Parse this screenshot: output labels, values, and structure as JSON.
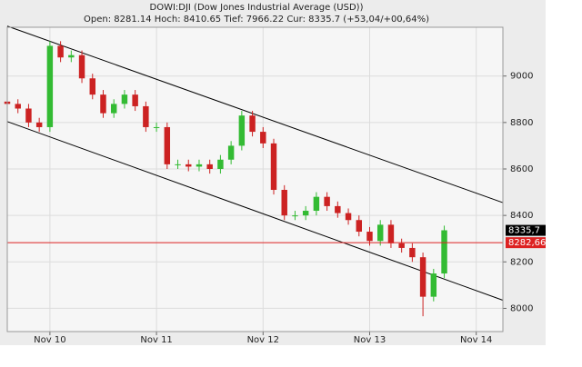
{
  "chart_data": {
    "type": "candlestick",
    "title": "DOWI:DJI (Dow Jones Industrial Average (USD))",
    "subtitle": "Open: 8281.14 Hoch: 8410.65 Tief: 7966.22 Cur: 8335.7 (+53,04/+00,64%)",
    "x": [
      -0.4,
      -0.3,
      -0.2,
      -0.1,
      0,
      0.1,
      0.2,
      0.3,
      0.4,
      0.5,
      0.6,
      0.7,
      0.8,
      0.9,
      1,
      1.1,
      1.2,
      1.3,
      1.4,
      1.5,
      1.6,
      1.7,
      1.8,
      1.9,
      2,
      2.1,
      2.2,
      2.3,
      2.4,
      2.5,
      2.6,
      2.7,
      2.8,
      2.9,
      3,
      3.1,
      3.2,
      3.3,
      3.4,
      3.5,
      3.6,
      3.7
    ],
    "open": [
      8890,
      8880,
      8860,
      8800,
      8780,
      9130,
      9080,
      9090,
      8990,
      8920,
      8840,
      8880,
      8920,
      8870,
      8780,
      8780,
      8620,
      8620,
      8610,
      8620,
      8600,
      8640,
      8700,
      8830,
      8760,
      8710,
      8510,
      8400,
      8400,
      8420,
      8480,
      8440,
      8410,
      8380,
      8330,
      8290,
      8360,
      8280,
      8260,
      8220,
      8050,
      8150
    ],
    "high": [
      8910,
      8900,
      8880,
      8820,
      9150,
      9150,
      9110,
      9110,
      9010,
      8940,
      8900,
      8940,
      8940,
      8890,
      8800,
      8800,
      8640,
      8640,
      8640,
      8640,
      8660,
      8720,
      8850,
      8850,
      8780,
      8730,
      8530,
      8420,
      8440,
      8500,
      8500,
      8460,
      8430,
      8400,
      8350,
      8380,
      8380,
      8300,
      8280,
      8240,
      8170,
      8356
    ],
    "low": [
      8860,
      8840,
      8780,
      8760,
      8760,
      9060,
      9060,
      8970,
      8900,
      8820,
      8820,
      8860,
      8850,
      8760,
      8760,
      8600,
      8600,
      8590,
      8590,
      8580,
      8580,
      8620,
      8680,
      8740,
      8690,
      8490,
      8380,
      8380,
      8380,
      8400,
      8420,
      8390,
      8360,
      8310,
      8270,
      8270,
      8260,
      8240,
      8200,
      7966,
      8030,
      8130
    ],
    "close": [
      8880,
      8860,
      8800,
      8780,
      9130,
      9080,
      9090,
      8990,
      8920,
      8840,
      8880,
      8920,
      8870,
      8780,
      8780,
      8620,
      8620,
      8610,
      8620,
      8600,
      8640,
      8700,
      8830,
      8760,
      8710,
      8510,
      8400,
      8400,
      8420,
      8480,
      8440,
      8410,
      8380,
      8330,
      8290,
      8360,
      8280,
      8260,
      8220,
      8050,
      8150,
      8336
    ],
    "up_color": "#33bb33",
    "down_color": "#cc2222",
    "xlim": [
      -0.4,
      4.25
    ],
    "xticks": [
      {
        "value": 0,
        "label": "Nov 10"
      },
      {
        "value": 1,
        "label": "Nov 11"
      },
      {
        "value": 2,
        "label": "Nov 12"
      },
      {
        "value": 3,
        "label": "Nov 13"
      },
      {
        "value": 4,
        "label": "Nov 14"
      }
    ],
    "ylim": [
      7900,
      9210
    ],
    "yticks": [
      8000,
      8200,
      8400,
      8600,
      8800,
      9000
    ],
    "grid": true,
    "trend_lines": [
      {
        "x": [
          -0.4,
          4.25
        ],
        "y": [
          9215,
          8455
        ],
        "color": "#000000"
      },
      {
        "x": [
          -0.4,
          4.25
        ],
        "y": [
          8804,
          8035
        ],
        "color": "#000000"
      }
    ],
    "price_labels": [
      {
        "value": 8335.7,
        "label": "8335,7",
        "color": "#000000",
        "line": false
      },
      {
        "value": 8282.66,
        "label": "8282,66",
        "color": "#dd2222",
        "line": true
      }
    ]
  }
}
